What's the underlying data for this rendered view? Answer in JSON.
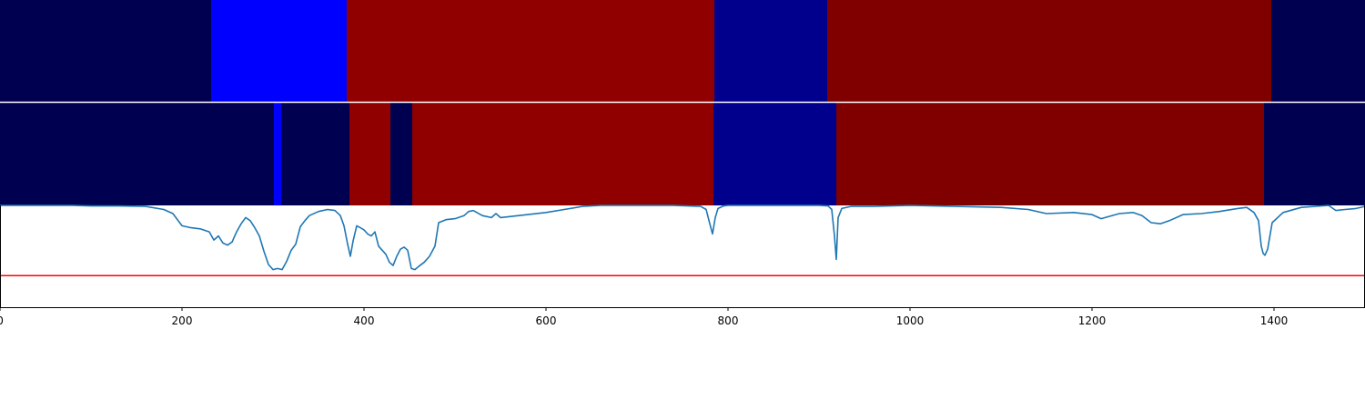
{
  "chart_data": [
    {
      "type": "heatmap",
      "panel": "top-band",
      "xlim": [
        0,
        1500
      ],
      "segments": [
        {
          "start": 0,
          "end": 232,
          "color": "#000050"
        },
        {
          "start": 232,
          "end": 381,
          "color": "#0000ff"
        },
        {
          "start": 381,
          "end": 785,
          "color": "#900000"
        },
        {
          "start": 785,
          "end": 909,
          "color": "#00008c"
        },
        {
          "start": 909,
          "end": 1397,
          "color": "#800000"
        },
        {
          "start": 1397,
          "end": 1500,
          "color": "#000050"
        }
      ]
    },
    {
      "type": "heatmap",
      "panel": "middle-band",
      "xlim": [
        0,
        1500
      ],
      "segments": [
        {
          "start": 0,
          "end": 301,
          "color": "#000050"
        },
        {
          "start": 301,
          "end": 309,
          "color": "#0000ff"
        },
        {
          "start": 309,
          "end": 384,
          "color": "#000050"
        },
        {
          "start": 384,
          "end": 429,
          "color": "#900000"
        },
        {
          "start": 429,
          "end": 453,
          "color": "#000050"
        },
        {
          "start": 453,
          "end": 784,
          "color": "#900000"
        },
        {
          "start": 784,
          "end": 919,
          "color": "#00008c"
        },
        {
          "start": 919,
          "end": 1389,
          "color": "#800000"
        },
        {
          "start": 1389,
          "end": 1500,
          "color": "#000050"
        }
      ]
    },
    {
      "type": "line",
      "panel": "signal",
      "xlim": [
        0,
        1500
      ],
      "ylim": [
        0,
        1
      ],
      "xticks": [
        "0",
        "200",
        "400",
        "600",
        "800",
        "1000",
        "1200",
        "1400"
      ],
      "xtick_values": [
        0,
        200,
        400,
        600,
        800,
        1000,
        1200,
        1400
      ],
      "threshold": 0.31,
      "threshold_color": "#ff0000",
      "series_color": "#1f77b4",
      "x": [
        0,
        80,
        100,
        130,
        160,
        180,
        190,
        200,
        210,
        220,
        230,
        235,
        240,
        245,
        250,
        255,
        260,
        265,
        270,
        275,
        280,
        285,
        290,
        295,
        300,
        305,
        310,
        315,
        320,
        325,
        330,
        335,
        340,
        350,
        360,
        368,
        374,
        378,
        382,
        385,
        388,
        392,
        396,
        400,
        404,
        408,
        412,
        416,
        420,
        424,
        428,
        432,
        436,
        440,
        444,
        448,
        452,
        456,
        460,
        466,
        472,
        478,
        482,
        490,
        500,
        510,
        515,
        520,
        530,
        540,
        545,
        550,
        560,
        580,
        600,
        620,
        640,
        660,
        700,
        740,
        770,
        776,
        780,
        783,
        786,
        789,
        795,
        800,
        830,
        860,
        900,
        910,
        914,
        917,
        919,
        921,
        925,
        935,
        960,
        1000,
        1050,
        1100,
        1130,
        1150,
        1180,
        1200,
        1210,
        1230,
        1245,
        1255,
        1265,
        1275,
        1285,
        1300,
        1320,
        1340,
        1360,
        1370,
        1378,
        1383,
        1386,
        1388,
        1390,
        1393,
        1398,
        1410,
        1430,
        1460,
        1468,
        1478,
        1490,
        1500
      ],
      "y": [
        1.0,
        1.0,
        0.995,
        0.995,
        0.99,
        0.96,
        0.92,
        0.8,
        0.78,
        0.77,
        0.74,
        0.66,
        0.7,
        0.63,
        0.61,
        0.64,
        0.74,
        0.82,
        0.88,
        0.85,
        0.78,
        0.7,
        0.55,
        0.42,
        0.37,
        0.38,
        0.37,
        0.45,
        0.56,
        0.62,
        0.79,
        0.85,
        0.9,
        0.94,
        0.96,
        0.95,
        0.9,
        0.8,
        0.62,
        0.5,
        0.65,
        0.8,
        0.78,
        0.76,
        0.72,
        0.7,
        0.74,
        0.6,
        0.56,
        0.52,
        0.44,
        0.41,
        0.5,
        0.57,
        0.59,
        0.56,
        0.38,
        0.37,
        0.4,
        0.44,
        0.5,
        0.6,
        0.83,
        0.86,
        0.87,
        0.9,
        0.94,
        0.95,
        0.9,
        0.88,
        0.92,
        0.88,
        0.89,
        0.91,
        0.93,
        0.96,
        0.99,
        1.0,
        1.0,
        1.0,
        0.99,
        0.96,
        0.82,
        0.72,
        0.88,
        0.97,
        0.995,
        1.0,
        1.0,
        1.0,
        1.0,
        0.995,
        0.96,
        0.7,
        0.47,
        0.88,
        0.97,
        0.99,
        0.99,
        1.0,
        0.99,
        0.98,
        0.96,
        0.92,
        0.93,
        0.91,
        0.87,
        0.92,
        0.93,
        0.9,
        0.83,
        0.82,
        0.85,
        0.91,
        0.92,
        0.94,
        0.97,
        0.98,
        0.93,
        0.85,
        0.6,
        0.53,
        0.51,
        0.57,
        0.83,
        0.93,
        0.98,
        1.0,
        0.95,
        0.96,
        0.97,
        0.99
      ]
    }
  ]
}
